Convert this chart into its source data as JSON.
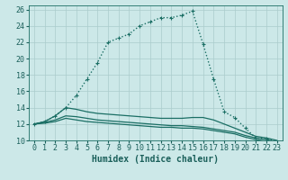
{
  "xlabel": "Humidex (Indice chaleur)",
  "background_color": "#cce8e8",
  "grid_color": "#aacccc",
  "line_color": "#1a6e64",
  "xlim": [
    -0.5,
    23.5
  ],
  "ylim": [
    10,
    26.5
  ],
  "xticks": [
    0,
    1,
    2,
    3,
    4,
    5,
    6,
    7,
    8,
    9,
    10,
    11,
    12,
    13,
    14,
    15,
    16,
    17,
    18,
    19,
    20,
    21,
    22,
    23
  ],
  "yticks": [
    10,
    12,
    14,
    16,
    18,
    20,
    22,
    24,
    26
  ],
  "series": [
    {
      "x": [
        0,
        1,
        2,
        3,
        4,
        5,
        6,
        7,
        8,
        9,
        10,
        11,
        12,
        13,
        14,
        15,
        16,
        17,
        18,
        19,
        20,
        21,
        22,
        23
      ],
      "y": [
        12,
        12.3,
        13,
        14,
        15.5,
        17.5,
        19.5,
        22,
        22.5,
        23,
        24,
        24.5,
        25,
        25,
        25.3,
        25.8,
        21.8,
        17.5,
        13.5,
        12.8,
        11.5,
        10.3,
        10.2,
        9.8
      ],
      "linestyle": ":",
      "marker": "+",
      "lw": 1.0,
      "ms": 3.5
    },
    {
      "x": [
        0,
        1,
        2,
        3,
        4,
        5,
        6,
        7,
        8,
        9,
        10,
        11,
        12,
        13,
        14,
        15,
        16,
        17,
        18,
        19,
        20,
        21,
        22,
        23
      ],
      "y": [
        12,
        12.3,
        13,
        14,
        13.8,
        13.5,
        13.3,
        13.2,
        13.1,
        13.0,
        12.9,
        12.8,
        12.7,
        12.7,
        12.7,
        12.8,
        12.8,
        12.5,
        12.0,
        11.5,
        11.0,
        10.5,
        10.3,
        10.0
      ],
      "linestyle": "-",
      "marker": null,
      "lw": 0.9,
      "ms": 0
    },
    {
      "x": [
        0,
        1,
        2,
        3,
        4,
        5,
        6,
        7,
        8,
        9,
        10,
        11,
        12,
        13,
        14,
        15,
        16,
        17,
        18,
        19,
        20,
        21,
        22,
        23
      ],
      "y": [
        12,
        12.2,
        12.5,
        13.0,
        12.9,
        12.7,
        12.5,
        12.4,
        12.3,
        12.2,
        12.1,
        12.0,
        11.9,
        11.8,
        11.8,
        11.7,
        11.6,
        11.4,
        11.2,
        11.0,
        10.6,
        10.3,
        10.1,
        9.8
      ],
      "linestyle": "-",
      "marker": null,
      "lw": 0.9,
      "ms": 0
    },
    {
      "x": [
        0,
        1,
        2,
        3,
        4,
        5,
        6,
        7,
        8,
        9,
        10,
        11,
        12,
        13,
        14,
        15,
        16,
        17,
        18,
        19,
        20,
        21,
        22,
        23
      ],
      "y": [
        12,
        12.1,
        12.3,
        12.7,
        12.5,
        12.3,
        12.2,
        12.1,
        12.0,
        11.9,
        11.8,
        11.7,
        11.6,
        11.6,
        11.5,
        11.5,
        11.4,
        11.2,
        11.0,
        10.8,
        10.4,
        10.1,
        9.9,
        9.6
      ],
      "linestyle": "-",
      "marker": null,
      "lw": 0.9,
      "ms": 0
    }
  ],
  "font_color": "#1a5f5a",
  "xlabel_fontsize": 7.0,
  "tick_fontsize": 6.0
}
